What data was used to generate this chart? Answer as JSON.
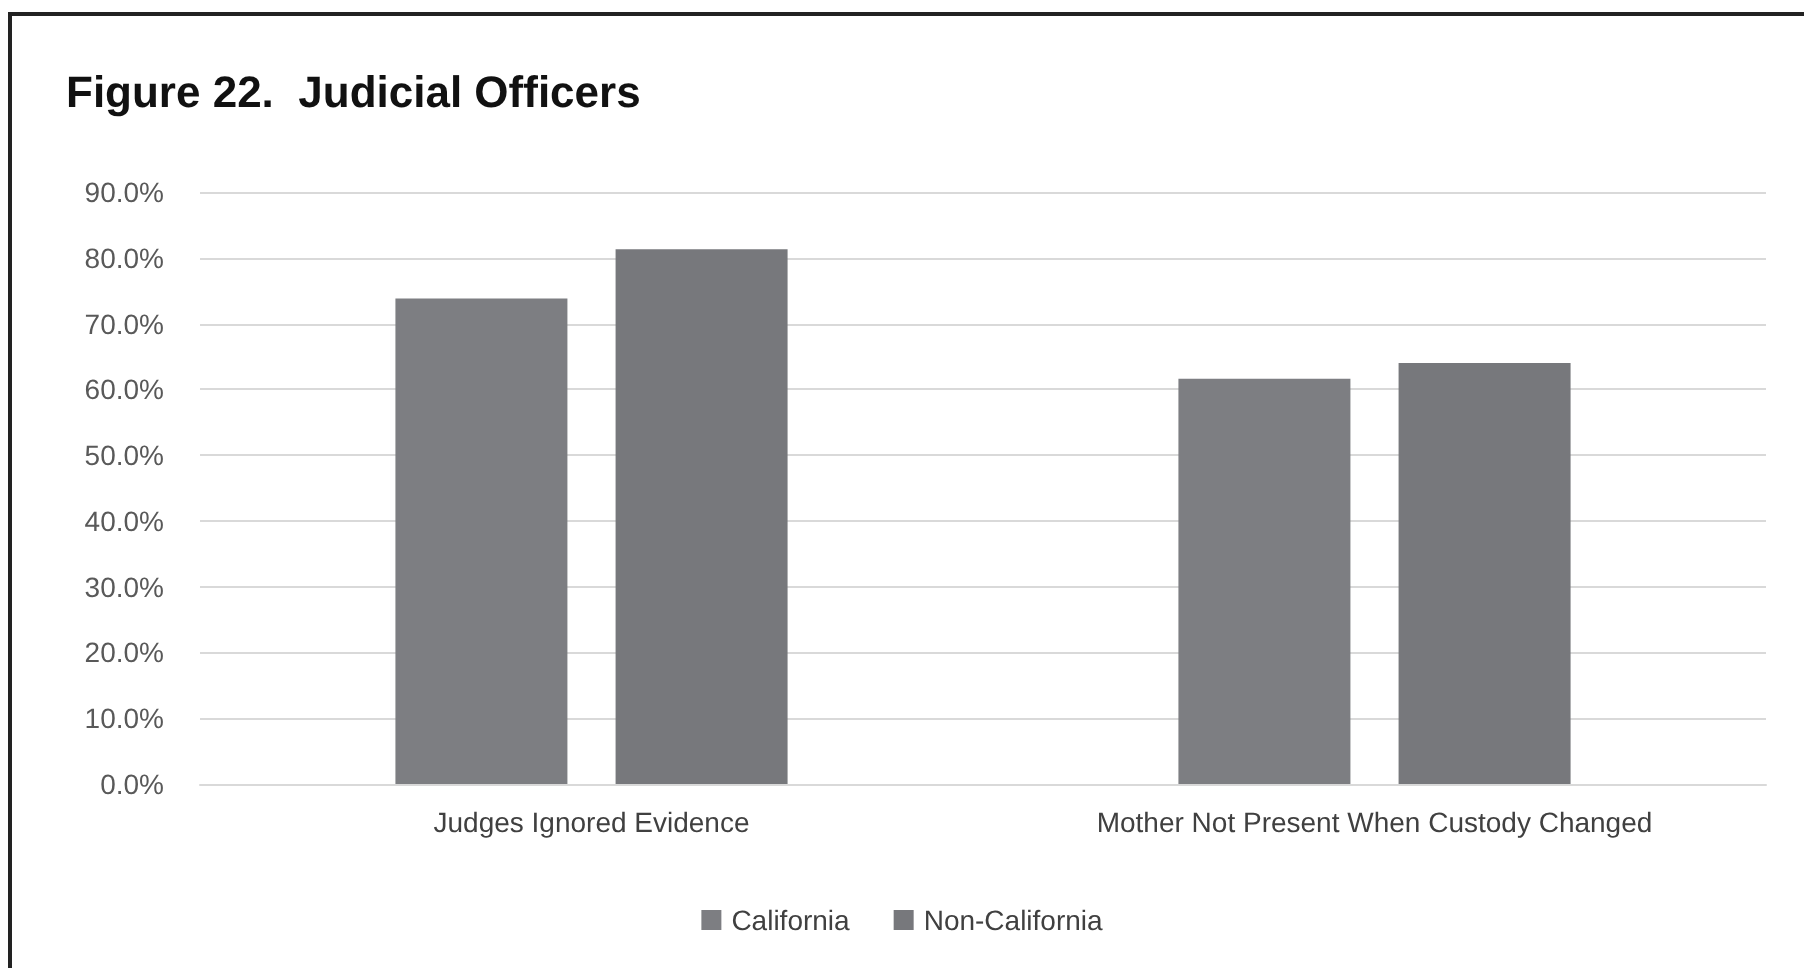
{
  "chart_data": {
    "type": "bar",
    "title": "Figure 22.  Judicial Officers",
    "categories": [
      "Judges Ignored Evidence",
      "Mother Not Present When Custody Changed"
    ],
    "series": [
      {
        "name": "California",
        "color": "#7d7e82",
        "values": [
          73.8,
          61.6
        ]
      },
      {
        "name": "Non-California",
        "color": "#77787c",
        "values": [
          81.3,
          64.0
        ]
      }
    ],
    "ylim": [
      0,
      90
    ],
    "yticks": [
      {
        "value": 0,
        "label": "0.0%"
      },
      {
        "value": 10,
        "label": "10.0%"
      },
      {
        "value": 20,
        "label": "20.0%"
      },
      {
        "value": 30,
        "label": "30.0%"
      },
      {
        "value": 40,
        "label": "40.0%"
      },
      {
        "value": 50,
        "label": "50.0%"
      },
      {
        "value": 60,
        "label": "60.0%"
      },
      {
        "value": 70,
        "label": "70.0%"
      },
      {
        "value": 80,
        "label": "80.0%"
      },
      {
        "value": 90,
        "label": "90.0%"
      }
    ],
    "grid": "y",
    "legend": "bottom"
  }
}
